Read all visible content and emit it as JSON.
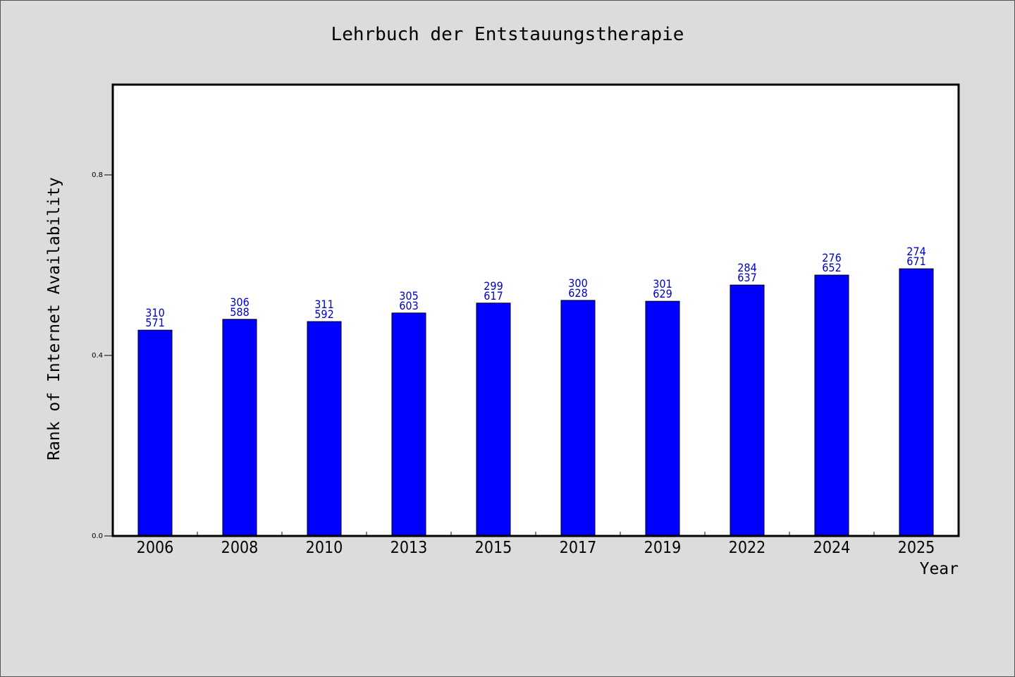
{
  "chart_data": {
    "type": "bar",
    "title": "Lehrbuch der Entstauungstherapie",
    "xlabel": "Year",
    "ylabel": "Rank of Internet Availability",
    "categories": [
      "2006",
      "2008",
      "2010",
      "2013",
      "2015",
      "2017",
      "2019",
      "2022",
      "2024",
      "2025"
    ],
    "values": [
      0.456,
      0.48,
      0.475,
      0.494,
      0.516,
      0.522,
      0.52,
      0.556,
      0.578,
      0.592
    ],
    "label_top": [
      "310",
      "306",
      "311",
      "305",
      "299",
      "300",
      "301",
      "284",
      "276",
      "274"
    ],
    "label_bottom": [
      "571",
      "588",
      "592",
      "603",
      "617",
      "628",
      "629",
      "637",
      "652",
      "671"
    ],
    "ylim": [
      0,
      1.0
    ],
    "yticks": [
      0.0,
      0.4,
      0.8
    ],
    "ytick_labels": [
      "0.0",
      "0.4",
      "0.8"
    ],
    "grid": false,
    "legend": "none",
    "bar_color": "#0000ff",
    "label_color": "#0000cc",
    "background": "#dcdcdc",
    "plot_background": "#ffffff"
  }
}
